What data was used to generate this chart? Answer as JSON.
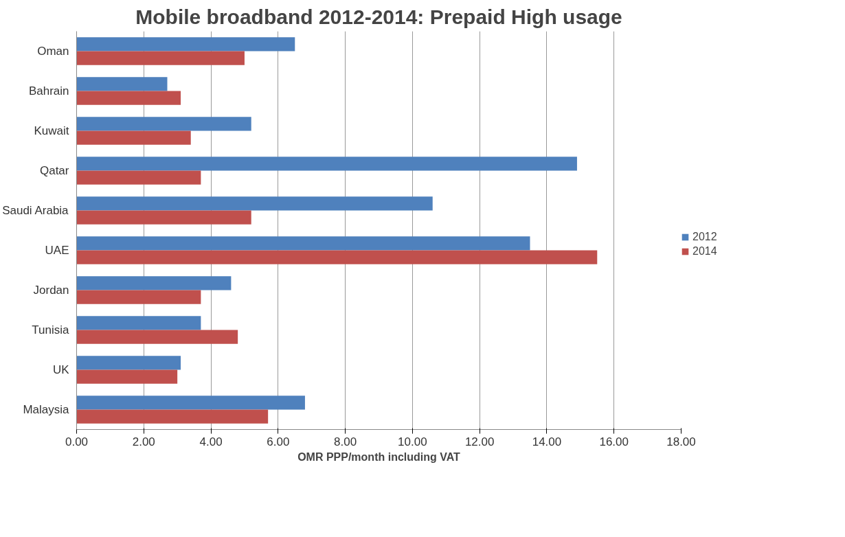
{
  "chart_data": {
    "type": "bar",
    "orientation": "horizontal",
    "title": "Mobile broadband 2012-2014: Prepaid High usage",
    "xlabel": "OMR PPP/month including VAT",
    "categories": [
      "Oman",
      "Bahrain",
      "Kuwait",
      "Qatar",
      "Saudi Arabia",
      "UAE",
      "Jordan",
      "Tunisia",
      "UK",
      "Malaysia"
    ],
    "series": [
      {
        "name": "2012",
        "color": "#4f81bd",
        "values": [
          6.5,
          2.7,
          5.2,
          14.9,
          10.6,
          13.5,
          4.6,
          3.7,
          3.1,
          6.8
        ]
      },
      {
        "name": "2014",
        "color": "#c0504d",
        "values": [
          5.0,
          3.1,
          3.4,
          3.7,
          5.2,
          15.5,
          3.7,
          4.8,
          3.0,
          5.7
        ]
      }
    ],
    "xlim": [
      0,
      18
    ],
    "xticks": [
      {
        "value": 0,
        "label": "0.00"
      },
      {
        "value": 2,
        "label": "2.00"
      },
      {
        "value": 4,
        "label": "4.00"
      },
      {
        "value": 6,
        "label": "6.00"
      },
      {
        "value": 8,
        "label": "8.00"
      },
      {
        "value": 10,
        "label": "10.00"
      },
      {
        "value": 12,
        "label": "12.00"
      },
      {
        "value": 14,
        "label": "14.00"
      },
      {
        "value": 16,
        "label": "16.00"
      },
      {
        "value": 18,
        "label": "18.00"
      }
    ],
    "grid": "x",
    "legend": "right"
  }
}
